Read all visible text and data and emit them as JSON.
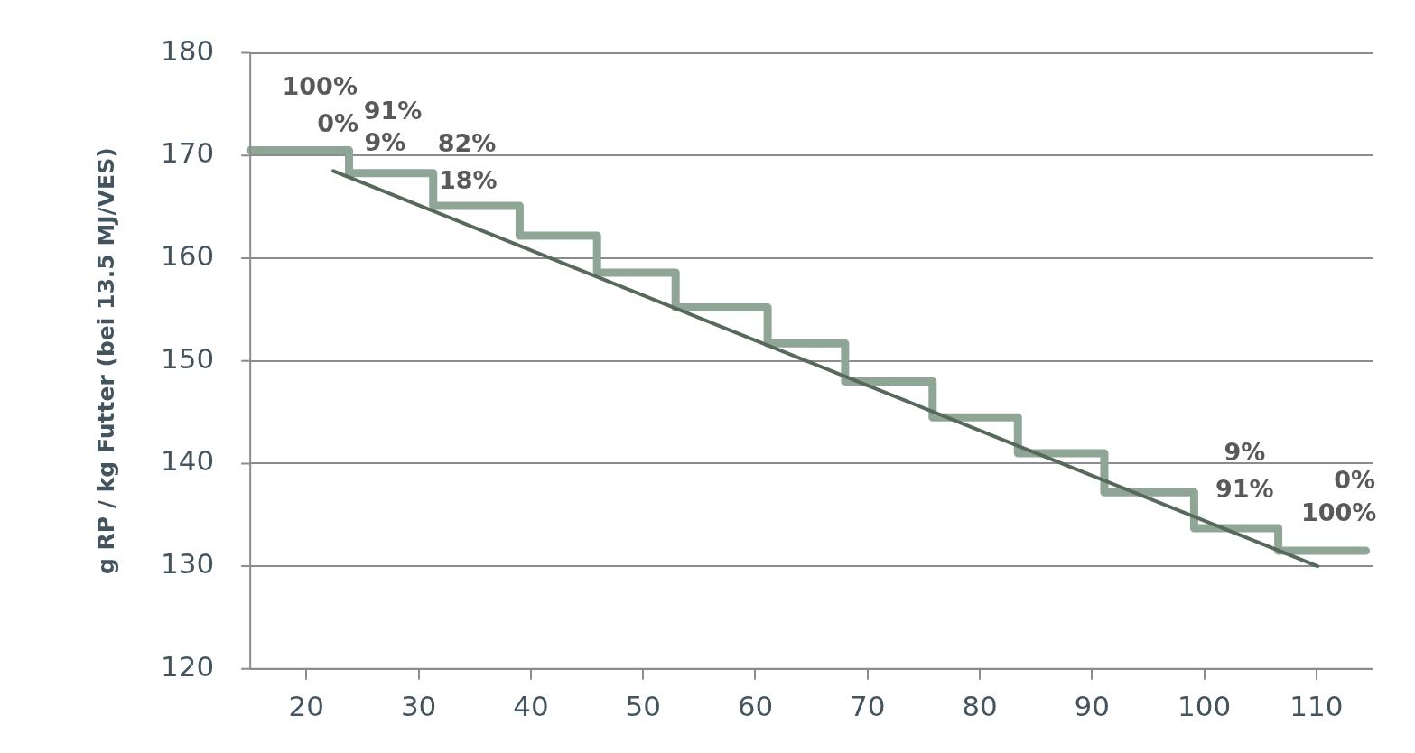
{
  "chart_data": {
    "type": "line",
    "ylabel": "g RP / kg Futter (bei 13.5 MJ/VES)",
    "xlim": [
      15,
      115
    ],
    "xticks": [
      20,
      30,
      40,
      50,
      60,
      70,
      80,
      90,
      100,
      110
    ],
    "ylim": [
      120,
      180
    ],
    "yticks": [
      120,
      130,
      140,
      150,
      160,
      170,
      180
    ],
    "grid": "y",
    "marker": "none",
    "series": [
      {
        "type": "step",
        "color": "#8fa595",
        "x": [
          15,
          23.8,
          31.3,
          39.0,
          45.9,
          52.9,
          61.1,
          68.0,
          75.8,
          83.4,
          91.1,
          99.1,
          106.6,
          114.4
        ],
        "values": [
          170.5,
          168.3,
          165.1,
          162.2,
          158.6,
          155.2,
          151.7,
          148,
          144.5,
          141,
          137.2,
          133.7,
          131.5,
          131.5
        ]
      },
      {
        "type": "line",
        "color": "#56695b",
        "x": [
          22.4,
          110.1
        ],
        "values": [
          168.5,
          130
        ]
      }
    ],
    "annotations": [
      "100%",
      "0%",
      "91%",
      "9%",
      "82%",
      "18%",
      "9%",
      "91%",
      "0%",
      "100%"
    ]
  }
}
